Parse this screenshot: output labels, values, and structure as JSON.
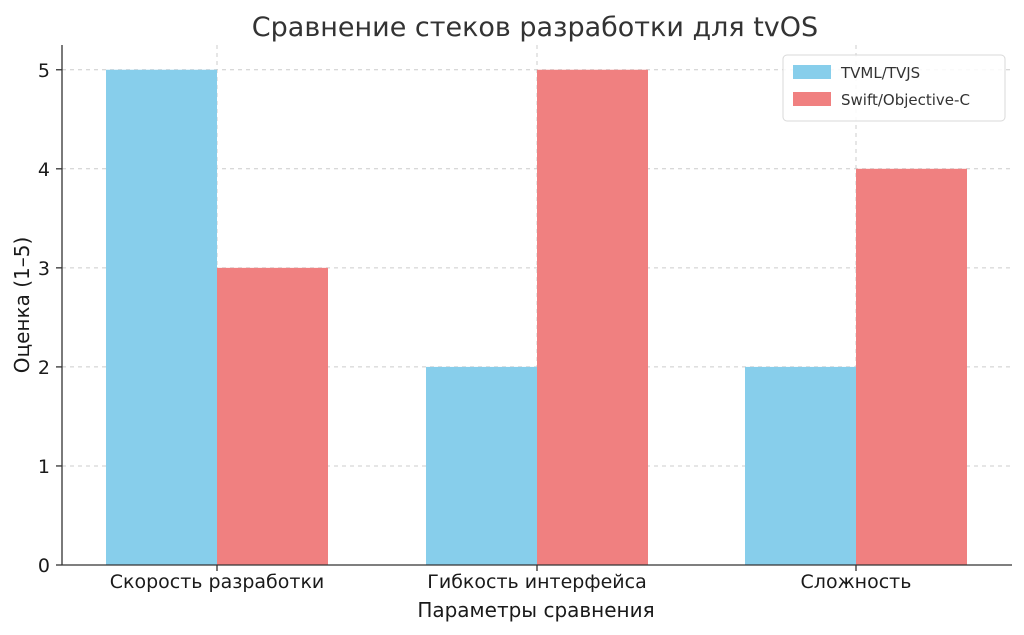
{
  "chart_data": {
    "type": "bar",
    "title": "Сравнение стеков разработки для tvOS",
    "xlabel": "Параметры сравнения",
    "ylabel": "Оценка (1–5)",
    "categories": [
      "Скорость разработки",
      "Гибкость интерфейса",
      "Сложность"
    ],
    "series": [
      {
        "name": "TVML/TVJS",
        "color": "#87ceeb",
        "values": [
          5,
          2,
          2
        ]
      },
      {
        "name": "Swift/Objective-C",
        "color": "#f08080",
        "values": [
          3,
          5,
          4
        ]
      }
    ],
    "ylim": [
      0,
      5.25
    ],
    "yticks": [
      0,
      1,
      2,
      3,
      4,
      5
    ],
    "grid": true,
    "legend_position": "top-right"
  }
}
